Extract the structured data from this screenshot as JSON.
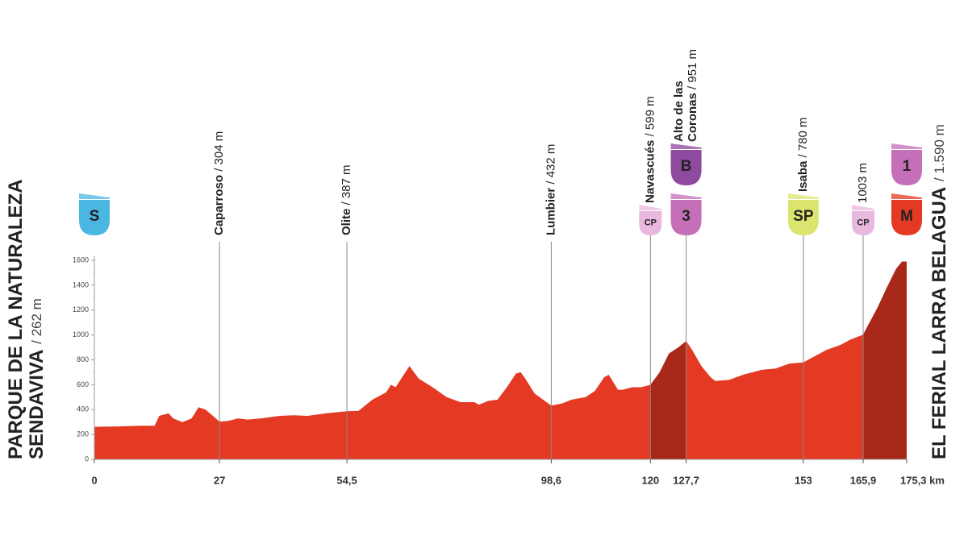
{
  "chart_data": {
    "type": "area",
    "color": "#e43a24",
    "highlight_color": "#a8291a",
    "highlight_ranges": [
      [
        120,
        127.7
      ],
      [
        165.9,
        175.3
      ]
    ],
    "xlim": [
      0,
      175.3
    ],
    "ylim": [
      0,
      1600
    ],
    "yticks": [
      0,
      200,
      400,
      600,
      800,
      1000,
      1200,
      1400,
      1600
    ],
    "xticks": [
      0,
      27,
      {
        "value": 54.5,
        "label": "54,5"
      },
      {
        "value": 98.6,
        "label": "98,6"
      },
      120,
      {
        "value": 127.7,
        "label": "127,7"
      },
      153,
      {
        "value": 165.9,
        "label": "165,9"
      },
      {
        "value": 175.3,
        "label": "175,3 km"
      }
    ],
    "start": {
      "lines": [
        "PARQUE DE LA NATURALEZA",
        "SENDAVIVA"
      ],
      "elevation": "/ 262 m"
    },
    "finish": {
      "lines": [
        "EL FERIAL LARRA BELAGUA"
      ],
      "elevation": "/ 1.590 m"
    },
    "waypoints": [
      {
        "km": 27,
        "name_lines": [
          "Caparroso"
        ],
        "elevation": "/ 304 m"
      },
      {
        "km": 54.5,
        "name_lines": [
          "Olite"
        ],
        "elevation": "/ 387 m"
      },
      {
        "km": 98.6,
        "name_lines": [
          "Lumbier"
        ],
        "elevation": "/ 432 m"
      },
      {
        "km": 120,
        "name_lines": [
          "Navascués"
        ],
        "elevation": "/ 599 m"
      },
      {
        "km": 127.7,
        "name_lines": [
          "Alto de las",
          "Coronas"
        ],
        "elevation": "/ 951 m"
      },
      {
        "km": 153,
        "name_lines": [
          "Isaba"
        ],
        "elevation": "/ 780 m"
      },
      {
        "km": 165.9,
        "name_lines": [],
        "elevation": "1003 m"
      }
    ],
    "badges": [
      {
        "km": 0,
        "label": "S",
        "color": "#4ab6e2",
        "text_color": "#ffffff",
        "small": false
      },
      {
        "km": 120,
        "label": "CP",
        "color": "#e9b8de",
        "text_color": "#5a2a5c",
        "small": true
      },
      {
        "km": 127.7,
        "label": "3",
        "color": "#c46fb8",
        "text_color": "#ffffff",
        "small": false
      },
      {
        "km": 127.7,
        "label": "B",
        "color": "#8e4a9e",
        "text_color": "#ffffff",
        "small": false
      },
      {
        "km": 153,
        "label": "SP",
        "color": "#dbe46c",
        "text_color": "#333333",
        "small": false
      },
      {
        "km": 165.9,
        "label": "CP",
        "color": "#e9b8de",
        "text_color": "#5a2a5c",
        "small": true
      },
      {
        "km": 175.3,
        "label": "M",
        "color": "#e43a24",
        "text_color": "#ffffff",
        "small": false
      },
      {
        "km": 175.3,
        "label": "1",
        "color": "#c46fb8",
        "text_color": "#ffffff",
        "small": false
      }
    ],
    "x": [
      0,
      5,
      10,
      13,
      14,
      16,
      17,
      19,
      21,
      22.5,
      24,
      27,
      29,
      31,
      33,
      36,
      40,
      43,
      46,
      50,
      54.5,
      57,
      60,
      63,
      64,
      65,
      68,
      70,
      73,
      76,
      79,
      82,
      83,
      85,
      87,
      89,
      91,
      92,
      93,
      95,
      98.6,
      101,
      103,
      106,
      108,
      110,
      111,
      113,
      114,
      116,
      118,
      120,
      122,
      124,
      126,
      127.7,
      129,
      131,
      133,
      134,
      137,
      140,
      144,
      147,
      150,
      153,
      155,
      158,
      161,
      163,
      165.9,
      167,
      169,
      171,
      173,
      174.3,
      175.3
    ],
    "values": [
      262,
      265,
      270,
      270,
      350,
      370,
      330,
      300,
      330,
      420,
      400,
      304,
      310,
      330,
      320,
      330,
      350,
      355,
      350,
      370,
      387,
      390,
      480,
      540,
      600,
      580,
      750,
      650,
      580,
      500,
      460,
      460,
      440,
      470,
      480,
      580,
      690,
      700,
      650,
      530,
      432,
      450,
      480,
      500,
      550,
      660,
      680,
      560,
      560,
      580,
      580,
      599,
      700,
      850,
      900,
      951,
      880,
      750,
      660,
      630,
      640,
      680,
      720,
      730,
      770,
      780,
      820,
      880,
      920,
      960,
      1003,
      1080,
      1220,
      1380,
      1530,
      1590,
      1590
    ]
  }
}
